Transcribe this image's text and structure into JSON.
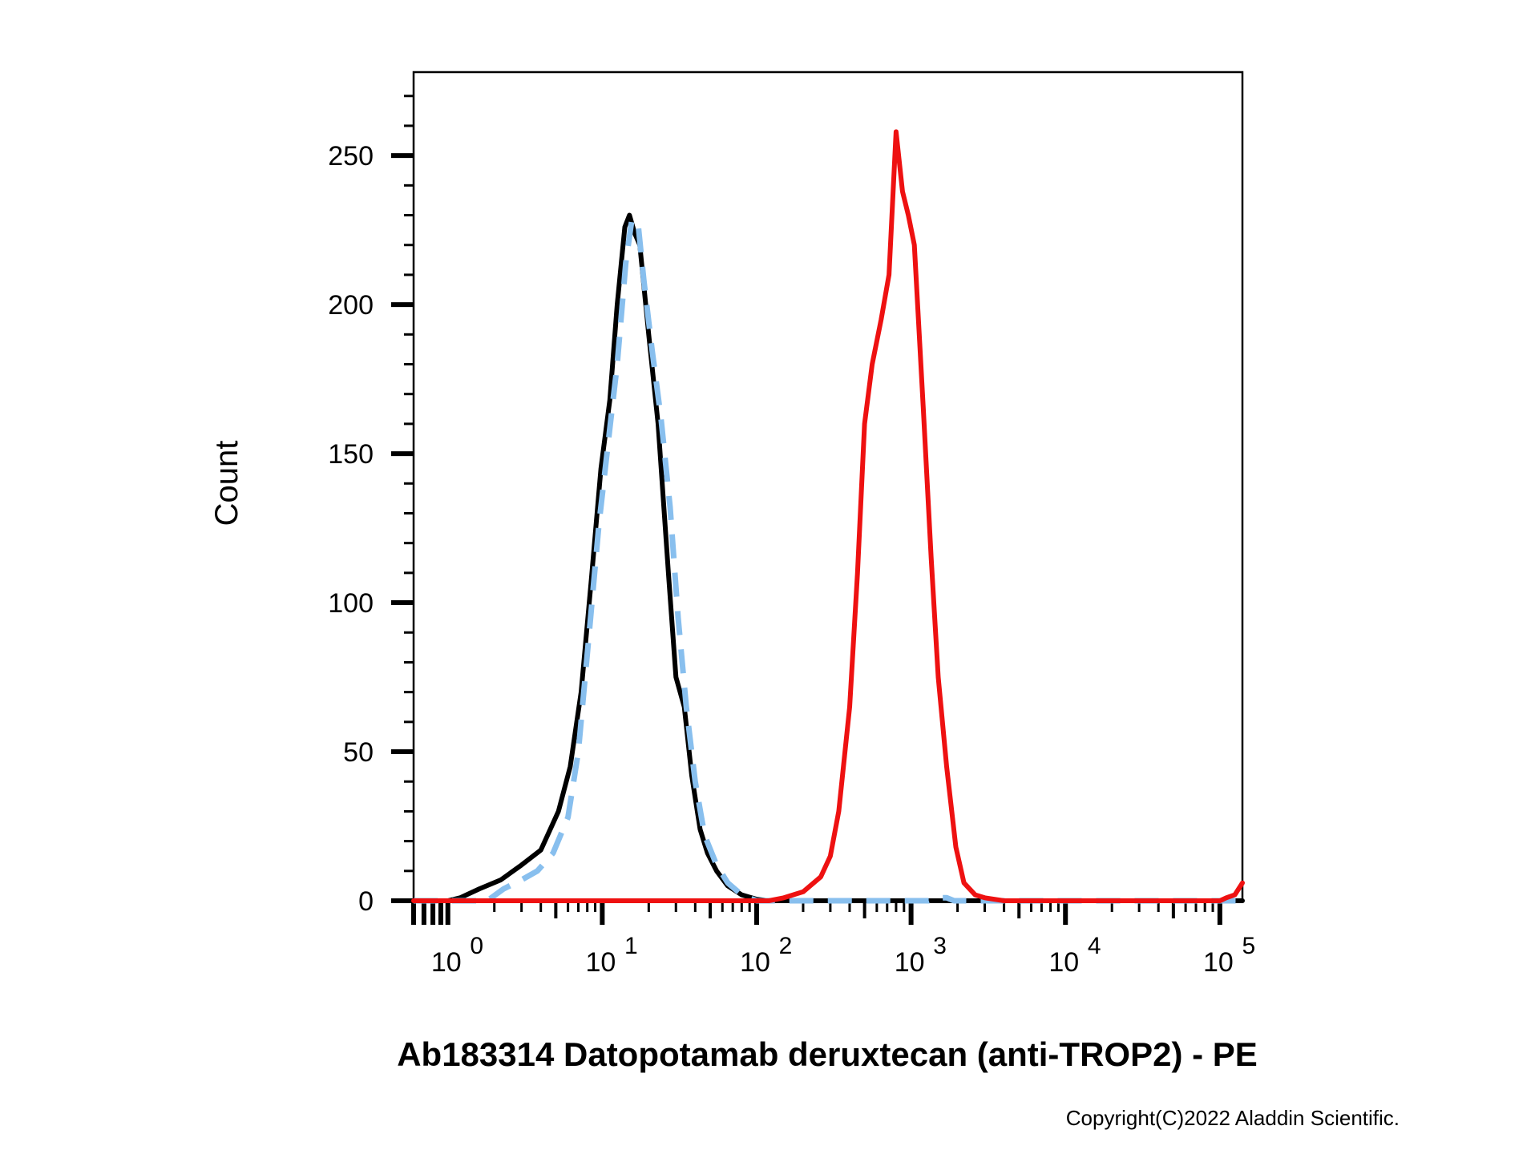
{
  "chart_data": {
    "type": "line",
    "title": "",
    "xlabel": "Ab183314 Datopotamab deruxtecan (anti-TROP2) - PE",
    "ylabel": "Count",
    "x_scale": "log",
    "xlim": [
      0.6,
      140000
    ],
    "ylim": [
      0,
      278
    ],
    "y_ticks": [
      0,
      50,
      100,
      150,
      200,
      250
    ],
    "x_tick_labels": [
      {
        "base": "10",
        "exp": "0"
      },
      {
        "base": "10",
        "exp": "1"
      },
      {
        "base": "10",
        "exp": "2"
      },
      {
        "base": "10",
        "exp": "3"
      },
      {
        "base": "10",
        "exp": "4"
      },
      {
        "base": "10",
        "exp": "5"
      }
    ],
    "grid": false,
    "legend": "none",
    "series": [
      {
        "color": "#000000",
        "style": "solid",
        "points": [
          [
            0.6,
            0
          ],
          [
            1.0,
            0
          ],
          [
            1.2,
            1
          ],
          [
            1.6,
            4
          ],
          [
            2.2,
            7
          ],
          [
            3.0,
            12
          ],
          [
            4.0,
            17
          ],
          [
            5.2,
            30
          ],
          [
            6.2,
            45
          ],
          [
            7.3,
            70
          ],
          [
            8.5,
            108
          ],
          [
            9.8,
            145
          ],
          [
            11.2,
            168
          ],
          [
            12.5,
            200
          ],
          [
            14.0,
            226
          ],
          [
            15.0,
            230
          ],
          [
            16.2,
            224
          ],
          [
            17.5,
            220
          ],
          [
            20.0,
            190
          ],
          [
            23.0,
            160
          ],
          [
            27.0,
            108
          ],
          [
            30.0,
            75
          ],
          [
            34.0,
            65
          ],
          [
            38.0,
            42
          ],
          [
            43.0,
            24
          ],
          [
            48.0,
            16
          ],
          [
            55.0,
            10
          ],
          [
            65.0,
            5
          ],
          [
            80.0,
            2
          ],
          [
            100.0,
            0.5
          ],
          [
            120.0,
            0
          ],
          [
            140000,
            0
          ]
        ]
      },
      {
        "color": "#88bfee",
        "style": "dashed",
        "points": [
          [
            0.6,
            0
          ],
          [
            1.8,
            0
          ],
          [
            2.3,
            4
          ],
          [
            3.0,
            7
          ],
          [
            3.8,
            10
          ],
          [
            4.8,
            16
          ],
          [
            6.0,
            28
          ],
          [
            7.0,
            50
          ],
          [
            8.3,
            92
          ],
          [
            9.5,
            126
          ],
          [
            11.0,
            155
          ],
          [
            12.5,
            180
          ],
          [
            14.2,
            214
          ],
          [
            15.5,
            228
          ],
          [
            17.0,
            228
          ],
          [
            18.6,
            208
          ],
          [
            21.0,
            185
          ],
          [
            24.0,
            162
          ],
          [
            27.5,
            132
          ],
          [
            31.0,
            95
          ],
          [
            35.0,
            65
          ],
          [
            40.0,
            40
          ],
          [
            46.0,
            22
          ],
          [
            55.0,
            12
          ],
          [
            65.0,
            6
          ],
          [
            80.0,
            2
          ],
          [
            100.0,
            0
          ],
          [
            1300.0,
            0
          ],
          [
            1500.0,
            1
          ],
          [
            1700.0,
            1
          ],
          [
            1900.0,
            0
          ],
          [
            140000,
            0
          ]
        ]
      },
      {
        "color": "#ee1111",
        "style": "solid",
        "points": [
          [
            0.6,
            0
          ],
          [
            120.0,
            0
          ],
          [
            150.0,
            1
          ],
          [
            200.0,
            3
          ],
          [
            260.0,
            8
          ],
          [
            300.0,
            15
          ],
          [
            340.0,
            30
          ],
          [
            400.0,
            65
          ],
          [
            450.0,
            110
          ],
          [
            500.0,
            160
          ],
          [
            560.0,
            180
          ],
          [
            640.0,
            195
          ],
          [
            720.0,
            210
          ],
          [
            800.0,
            258
          ],
          [
            880.0,
            238
          ],
          [
            960.0,
            230
          ],
          [
            1050.0,
            220
          ],
          [
            1200.0,
            165
          ],
          [
            1350.0,
            115
          ],
          [
            1500.0,
            75
          ],
          [
            1700.0,
            45
          ],
          [
            1950.0,
            18
          ],
          [
            2200.0,
            6
          ],
          [
            2600.0,
            2
          ],
          [
            3000.0,
            1
          ],
          [
            4000.0,
            0
          ],
          [
            100000,
            0
          ],
          [
            110000,
            1
          ],
          [
            125000,
            2
          ],
          [
            140000,
            6
          ]
        ]
      }
    ]
  },
  "copyright": "Copyright(C)2022 Aladdin Scientific."
}
